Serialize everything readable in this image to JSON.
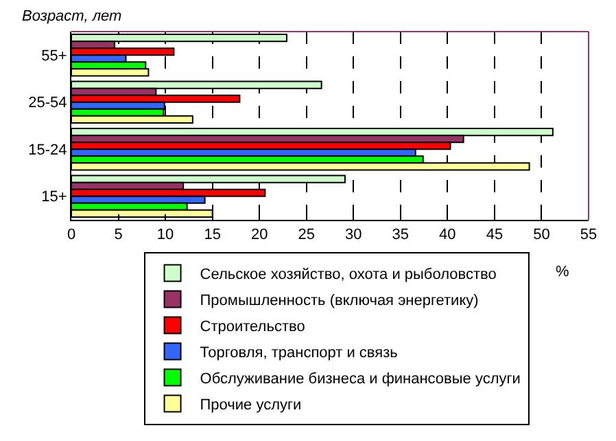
{
  "chart_data": {
    "type": "bar",
    "orientation": "horizontal",
    "ylabel": "Возраст, лет",
    "xlabel": "%",
    "categories": [
      "55+",
      "25-54",
      "15-24",
      "15+"
    ],
    "series": [
      {
        "name": "Сельское хозяйство, охота и рыболовство",
        "color": "#ccffcc",
        "values": [
          22.9,
          26.6,
          51.2,
          29.1
        ]
      },
      {
        "name": "Промышленность (включая энергетику)",
        "color": "#993366",
        "values": [
          4.6,
          9.0,
          41.7,
          11.9
        ]
      },
      {
        "name": "Строительство",
        "color": "#ff0000",
        "values": [
          10.9,
          17.9,
          40.3,
          20.6
        ]
      },
      {
        "name": "Торговля, транспорт и связь",
        "color": "#3366ff",
        "values": [
          5.8,
          9.9,
          36.6,
          14.2
        ]
      },
      {
        "name": "Обслуживание бизнеса и финансовые услуги",
        "color": "#00ff00",
        "values": [
          7.9,
          9.8,
          37.4,
          12.3
        ]
      },
      {
        "name": "Прочие услуги",
        "color": "#ffff99",
        "values": [
          8.2,
          12.9,
          48.7,
          15.0
        ]
      }
    ],
    "xlim": [
      0,
      55
    ],
    "xticks": [
      0,
      5,
      10,
      15,
      20,
      25,
      30,
      35,
      40,
      45,
      50,
      55
    ],
    "grid": "x",
    "legend": "bottom"
  }
}
